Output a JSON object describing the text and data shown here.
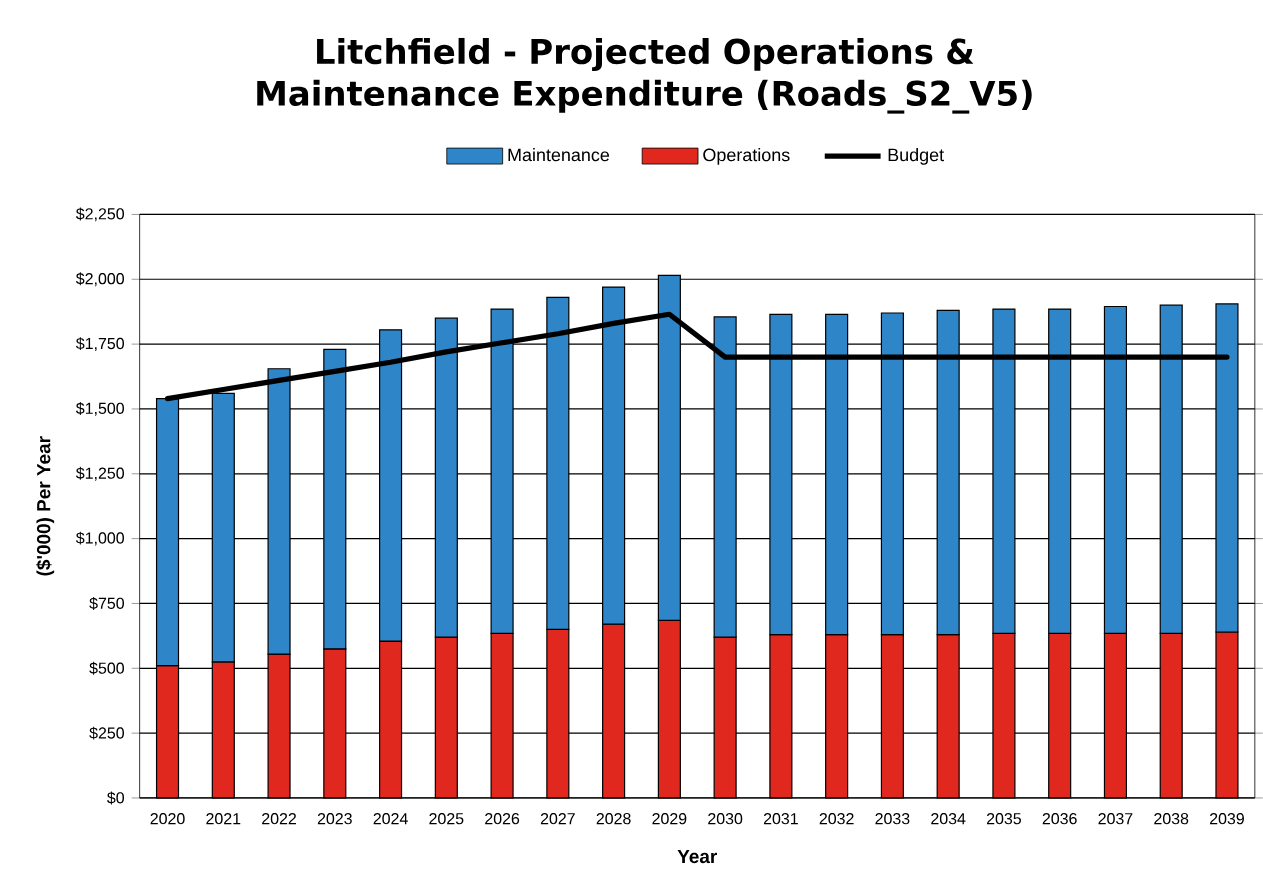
{
  "chart_data": {
    "type": "bar",
    "stacked": true,
    "title": "Litchfield - Projected Operations & Maintenance Expenditure (Roads_S2_V5)",
    "xlabel": "Year",
    "ylabel": "($'000) Per Year",
    "categories": [
      "2020",
      "2021",
      "2022",
      "2023",
      "2024",
      "2025",
      "2026",
      "2027",
      "2028",
      "2029",
      "2030",
      "2031",
      "2032",
      "2033",
      "2034",
      "2035",
      "2036",
      "2037",
      "2038",
      "2039"
    ],
    "series": [
      {
        "name": "Operations",
        "color": "#e0281f",
        "values": [
          510,
          525,
          555,
          575,
          605,
          620,
          635,
          650,
          670,
          685,
          620,
          630,
          630,
          630,
          630,
          635,
          635,
          635,
          635,
          640
        ]
      },
      {
        "name": "Maintenance",
        "color": "#2e86c8",
        "values": [
          1030,
          1035,
          1100,
          1155,
          1200,
          1230,
          1250,
          1280,
          1300,
          1330,
          1235,
          1235,
          1235,
          1240,
          1250,
          1250,
          1250,
          1260,
          1265,
          1265
        ]
      },
      {
        "name": "Budget",
        "type": "line",
        "color": "#000000",
        "values": [
          1540,
          1575,
          1610,
          1645,
          1680,
          1720,
          1755,
          1790,
          1830,
          1865,
          1700,
          1700,
          1700,
          1700,
          1700,
          1700,
          1700,
          1700,
          1700,
          1700
        ]
      }
    ],
    "ylim": [
      0,
      2250
    ],
    "yticks": [
      {
        "value": 0,
        "label": "$0"
      },
      {
        "value": 250,
        "label": "$250"
      },
      {
        "value": 500,
        "label": "$500"
      },
      {
        "value": 750,
        "label": "$750"
      },
      {
        "value": 1000,
        "label": "$1,000"
      },
      {
        "value": 1250,
        "label": "$1,250"
      },
      {
        "value": 1500,
        "label": "$1,500"
      },
      {
        "value": 1750,
        "label": "$1,750"
      },
      {
        "value": 2000,
        "label": "$2,000"
      },
      {
        "value": 2250,
        "label": "$2,250"
      }
    ],
    "grid": "y",
    "legend": "top",
    "marker": "none",
    "line_style": "solid"
  }
}
